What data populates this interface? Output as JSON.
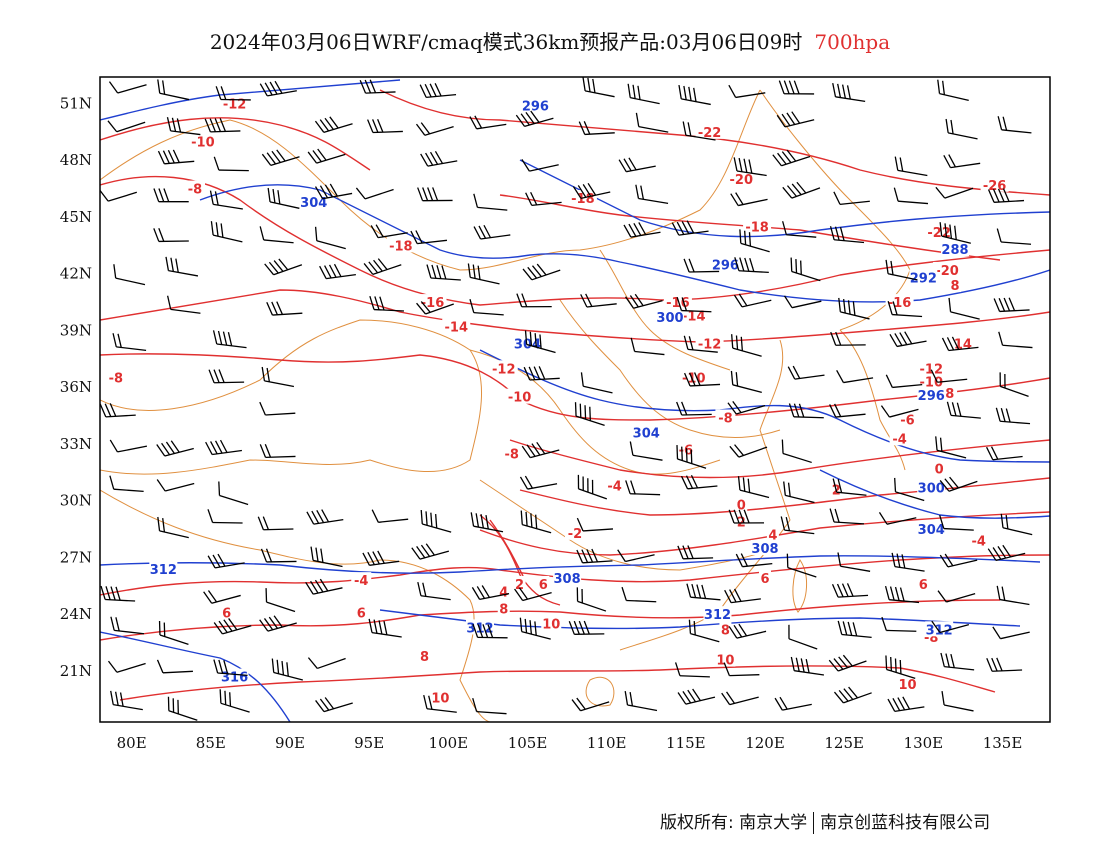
{
  "title": {
    "main": "2024年03月06日WRF/cmaq模式36km预报产品:03月06日09时",
    "level": "700hpa",
    "level_color": "#e03030"
  },
  "axes": {
    "lon_labels": [
      "80E",
      "85E",
      "90E",
      "95E",
      "100E",
      "105E",
      "110E",
      "115E",
      "120E",
      "125E",
      "130E",
      "135E"
    ],
    "lat_labels": [
      "51N",
      "48N",
      "45N",
      "42N",
      "39N",
      "36N",
      "33N",
      "30N",
      "27N",
      "24N",
      "21N"
    ]
  },
  "colors": {
    "temperature": "#e03030",
    "height": "#2040d0",
    "boundary": "#e09040",
    "wind": "#000000"
  },
  "temperature_labels": [
    {
      "text": "-12",
      "lon": 86.5,
      "lat": 51
    },
    {
      "text": "-10",
      "lon": 84.5,
      "lat": 49
    },
    {
      "text": "-8",
      "lon": 84,
      "lat": 46.5
    },
    {
      "text": "-8",
      "lon": 79,
      "lat": 36.5
    },
    {
      "text": "-18",
      "lon": 97,
      "lat": 43.5
    },
    {
      "text": "-16",
      "lon": 99,
      "lat": 40.5
    },
    {
      "text": "-14",
      "lon": 100.5,
      "lat": 39.2
    },
    {
      "text": "-12",
      "lon": 103.5,
      "lat": 37
    },
    {
      "text": "-10",
      "lon": 104.5,
      "lat": 35.5
    },
    {
      "text": "-8",
      "lon": 104,
      "lat": 32.5
    },
    {
      "text": "-18",
      "lon": 108.5,
      "lat": 46
    },
    {
      "text": "-22",
      "lon": 116.5,
      "lat": 49.5
    },
    {
      "text": "-20",
      "lon": 118.5,
      "lat": 47
    },
    {
      "text": "-18",
      "lon": 119.5,
      "lat": 44.5
    },
    {
      "text": "-16",
      "lon": 114.5,
      "lat": 40.5
    },
    {
      "text": "-14",
      "lon": 115.5,
      "lat": 39.8
    },
    {
      "text": "-12",
      "lon": 116.5,
      "lat": 38.3
    },
    {
      "text": "-10",
      "lon": 115.5,
      "lat": 36.5
    },
    {
      "text": "-8",
      "lon": 117.5,
      "lat": 34.4
    },
    {
      "text": "-6",
      "lon": 115,
      "lat": 32.7
    },
    {
      "text": "-4",
      "lon": 110.5,
      "lat": 30.8
    },
    {
      "text": "-2",
      "lon": 108,
      "lat": 28.3
    },
    {
      "text": "0",
      "lon": 118.5,
      "lat": 29.8
    },
    {
      "text": "2",
      "lon": 118.5,
      "lat": 28.9
    },
    {
      "text": "4",
      "lon": 120.5,
      "lat": 28.2
    },
    {
      "text": "2",
      "lon": 104.5,
      "lat": 25.6
    },
    {
      "text": "4",
      "lon": 103.5,
      "lat": 25.2
    },
    {
      "text": "6",
      "lon": 106,
      "lat": 25.6
    },
    {
      "text": "-4",
      "lon": 94.5,
      "lat": 25.8
    },
    {
      "text": "6",
      "lon": 86,
      "lat": 24.1
    },
    {
      "text": "6",
      "lon": 94.5,
      "lat": 24.1
    },
    {
      "text": "8",
      "lon": 103.5,
      "lat": 24.3
    },
    {
      "text": "10",
      "lon": 106.5,
      "lat": 23.5
    },
    {
      "text": "8",
      "lon": 98.5,
      "lat": 21.8
    },
    {
      "text": "10",
      "lon": 99.5,
      "lat": 19.6
    },
    {
      "text": "8",
      "lon": 117.5,
      "lat": 23.2
    },
    {
      "text": "10",
      "lon": 117.5,
      "lat": 21.6
    },
    {
      "text": "6",
      "lon": 120,
      "lat": 25.9
    },
    {
      "text": "6",
      "lon": 130,
      "lat": 25.6
    },
    {
      "text": "-8",
      "lon": 130.5,
      "lat": 22.8
    },
    {
      "text": "10",
      "lon": 129,
      "lat": 20.3
    },
    {
      "text": "-4",
      "lon": 133.5,
      "lat": 27.9
    },
    {
      "text": "2",
      "lon": 124.5,
      "lat": 30.6
    },
    {
      "text": "0",
      "lon": 131,
      "lat": 31.7
    },
    {
      "text": "-4",
      "lon": 128.5,
      "lat": 33.3
    },
    {
      "text": "-6",
      "lon": 129,
      "lat": 34.3
    },
    {
      "text": "-8",
      "lon": 131.5,
      "lat": 35.7
    },
    {
      "text": "-10",
      "lon": 130.5,
      "lat": 36.3
    },
    {
      "text": "-12",
      "lon": 130.5,
      "lat": 37
    },
    {
      "text": "14",
      "lon": 132.5,
      "lat": 38.3
    },
    {
      "text": "-16",
      "lon": 128.5,
      "lat": 40.5
    },
    {
      "text": "8",
      "lon": 132,
      "lat": 41.4
    },
    {
      "text": "-20",
      "lon": 131.5,
      "lat": 42.2
    },
    {
      "text": "-22",
      "lon": 131,
      "lat": 44.2
    },
    {
      "text": "-26",
      "lon": 134.5,
      "lat": 46.7
    }
  ],
  "height_labels": [
    {
      "text": "296",
      "lon": 105.5,
      "lat": 50.9
    },
    {
      "text": "304",
      "lon": 91.5,
      "lat": 45.8
    },
    {
      "text": "296",
      "lon": 117.5,
      "lat": 42.5
    },
    {
      "text": "300",
      "lon": 114,
      "lat": 39.7
    },
    {
      "text": "304",
      "lon": 105,
      "lat": 38.3
    },
    {
      "text": "304",
      "lon": 112.5,
      "lat": 33.6
    },
    {
      "text": "300",
      "lon": 130.5,
      "lat": 30.7
    },
    {
      "text": "304",
      "lon": 130.5,
      "lat": 28.5
    },
    {
      "text": "308",
      "lon": 120,
      "lat": 27.5
    },
    {
      "text": "308",
      "lon": 107.5,
      "lat": 25.9
    },
    {
      "text": "312",
      "lon": 82,
      "lat": 26.4
    },
    {
      "text": "312",
      "lon": 102,
      "lat": 23.3
    },
    {
      "text": "312",
      "lon": 117,
      "lat": 24
    },
    {
      "text": "312",
      "lon": 131,
      "lat": 23.2
    },
    {
      "text": "316",
      "lon": 86.5,
      "lat": 20.7
    },
    {
      "text": "292",
      "lon": 130,
      "lat": 41.8
    },
    {
      "text": "288",
      "lon": 132,
      "lat": 43.3
    },
    {
      "text": "296",
      "lon": 130.5,
      "lat": 35.6
    }
  ],
  "copyright": {
    "left": "版权所有: 南京大学",
    "right": "南京创蓝科技有限公司"
  }
}
